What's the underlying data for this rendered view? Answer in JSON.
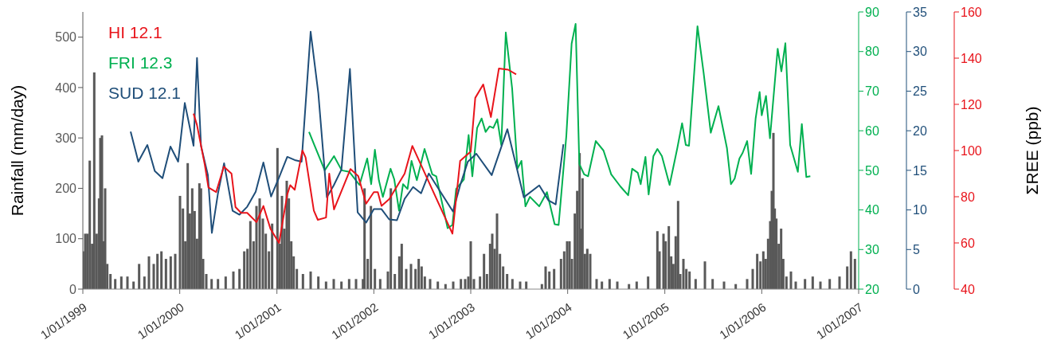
{
  "chart_data": [
    {
      "type": "bar",
      "ylabel": "Rainfall (mm/day)",
      "legend": "top left",
      "marker": "none",
      "line_style": "solid",
      "xlim": [
        "1999-01-01",
        "2007-01-01"
      ],
      "xticks": [
        {
          "value": "1999-01-01",
          "label": "1/01/1999"
        },
        {
          "value": "2000-01-01",
          "label": "1/01/2000"
        },
        {
          "value": "2001-01-01",
          "label": "1/01/2001"
        },
        {
          "value": "2002-01-01",
          "label": "1/01/2002"
        },
        {
          "value": "2003-01-01",
          "label": "1/01/2003"
        },
        {
          "value": "2004-01-01",
          "label": "1/01/2004"
        },
        {
          "value": "2005-01-01",
          "label": "1/01/2005"
        },
        {
          "value": "2006-01-01",
          "label": "1/01/2006"
        },
        {
          "value": "2007-01-01",
          "label": "1/01/2007"
        }
      ],
      "ylim": [
        0,
        550
      ],
      "yticks": [
        0,
        100,
        200,
        300,
        400,
        500
      ],
      "y2lim": [
        20,
        90
      ],
      "y2ticks": [
        20,
        30,
        40,
        50,
        60,
        70,
        80,
        90
      ],
      "y3lim": [
        0,
        35
      ],
      "y3ticks": [
        0,
        5,
        10,
        15,
        20,
        25,
        30,
        35
      ],
      "series": [
        {
          "color": "#595959",
          "x": [
            "1999-01-02",
            "1999-01-10",
            "1999-01-18",
            "1999-01-27",
            "1999-02-05",
            "1999-02-13",
            "1999-02-22",
            "1999-03-03",
            "1999-03-08",
            "1999-03-14",
            "1999-03-20",
            "1999-03-26",
            "1999-04-03",
            "1999-04-15",
            "1999-05-03",
            "1999-05-26",
            "1999-06-18",
            "1999-07-11",
            "1999-08-01",
            "1999-08-21",
            "1999-09-07",
            "1999-09-25",
            "1999-10-09",
            "1999-10-24",
            "1999-11-10",
            "1999-11-28",
            "1999-12-15",
            "2000-01-02",
            "2000-01-13",
            "2000-01-22",
            "2000-01-31",
            "2000-02-08",
            "2000-02-17",
            "2000-02-26",
            "2000-03-06",
            "2000-03-15",
            "2000-03-21",
            "2000-03-29",
            "2000-04-10",
            "2000-04-30",
            "2000-05-24",
            "2000-06-22",
            "2000-07-21",
            "2000-08-13",
            "2000-08-31",
            "2000-09-12",
            "2000-09-23",
            "2000-10-05",
            "2000-10-16",
            "2000-10-28",
            "2000-11-09",
            "2000-11-20",
            "2000-12-02",
            "2000-12-14",
            "2001-01-03",
            "2001-01-12",
            "2001-01-20",
            "2001-01-29",
            "2001-02-07",
            "2001-02-15",
            "2001-02-24",
            "2001-03-05",
            "2001-03-17",
            "2001-04-09",
            "2001-05-08",
            "2001-06-06",
            "2001-07-05",
            "2001-08-03",
            "2001-09-01",
            "2001-09-30",
            "2001-10-26",
            "2001-11-21",
            "2001-11-27",
            "2001-12-09",
            "2001-12-21",
            "2002-01-05",
            "2002-01-25",
            "2002-02-23",
            "2002-03-06",
            "2002-03-21",
            "2002-04-07",
            "2002-04-16",
            "2002-05-03",
            "2002-05-21",
            "2002-06-07",
            "2002-06-19",
            "2002-06-30",
            "2002-07-12",
            "2002-08-01",
            "2002-08-30",
            "2002-09-28",
            "2002-10-27",
            "2002-11-25",
            "2002-12-11",
            "2002-12-23",
            "2003-01-01",
            "2003-01-13",
            "2003-02-05",
            "2003-02-20",
            "2003-03-03",
            "2003-03-15",
            "2003-03-23",
            "2003-04-01",
            "2003-04-10",
            "2003-04-21",
            "2003-05-03",
            "2003-05-18",
            "2003-06-07",
            "2003-07-06",
            "2003-07-29",
            "2003-09-26",
            "2003-10-10",
            "2003-10-24",
            "2003-11-11",
            "2003-12-07",
            "2003-12-19",
            "2003-12-30",
            "2004-01-08",
            "2004-01-17",
            "2004-01-28",
            "2004-02-06",
            "2004-02-15",
            "2004-02-20",
            "2004-02-26",
            "2004-03-06",
            "2004-03-15",
            "2004-03-26",
            "2004-04-19",
            "2004-05-09",
            "2004-06-07",
            "2004-07-06",
            "2004-08-19",
            "2004-09-17",
            "2004-10-30",
            "2004-12-04",
            "2004-12-12",
            "2004-12-27",
            "2005-01-04",
            "2005-01-16",
            "2005-01-25",
            "2005-02-02",
            "2005-02-11",
            "2005-02-20",
            "2005-02-28",
            "2005-03-12",
            "2005-03-23",
            "2005-04-04",
            "2005-04-27",
            "2005-06-01",
            "2005-06-30",
            "2005-08-12",
            "2005-09-25",
            "2005-11-07",
            "2005-11-28",
            "2005-12-15",
            "2005-12-27",
            "2006-01-07",
            "2006-01-16",
            "2006-01-25",
            "2006-02-02",
            "2006-02-08",
            "2006-02-14",
            "2006-02-19",
            "2006-02-25",
            "2006-03-06",
            "2006-03-15",
            "2006-03-23",
            "2006-04-04",
            "2006-04-21",
            "2006-05-09",
            "2006-06-13",
            "2006-07-12",
            "2006-08-10",
            "2006-09-14",
            "2006-10-21",
            "2006-11-19",
            "2006-12-03",
            "2006-12-18"
          ],
          "values": [
            75,
            110,
            110,
            255,
            90,
            430,
            110,
            180,
            300,
            305,
            95,
            200,
            50,
            30,
            20,
            25,
            25,
            15,
            50,
            25,
            65,
            50,
            70,
            75,
            60,
            65,
            70,
            185,
            160,
            95,
            250,
            150,
            200,
            155,
            100,
            210,
            200,
            60,
            30,
            20,
            20,
            25,
            35,
            40,
            75,
            80,
            135,
            95,
            165,
            180,
            140,
            110,
            75,
            130,
            280,
            90,
            185,
            120,
            215,
            180,
            95,
            65,
            40,
            30,
            35,
            25,
            15,
            20,
            15,
            20,
            20,
            20,
            200,
            60,
            165,
            40,
            20,
            35,
            200,
            30,
            65,
            90,
            40,
            50,
            40,
            60,
            45,
            25,
            20,
            15,
            10,
            15,
            20,
            20,
            25,
            95,
            20,
            25,
            70,
            30,
            90,
            110,
            80,
            150,
            70,
            45,
            30,
            20,
            15,
            15,
            10,
            45,
            35,
            40,
            60,
            75,
            95,
            95,
            60,
            150,
            195,
            270,
            120,
            220,
            70,
            80,
            70,
            20,
            15,
            20,
            15,
            10,
            15,
            25,
            115,
            75,
            110,
            95,
            125,
            65,
            50,
            105,
            175,
            30,
            60,
            40,
            35,
            20,
            55,
            20,
            15,
            10,
            20,
            40,
            70,
            55,
            75,
            60,
            100,
            135,
            195,
            310,
            160,
            140,
            90,
            120,
            60,
            25,
            35,
            15,
            20,
            25,
            15,
            20,
            25,
            45,
            75,
            60
          ]
        },
        {
          "type": "line",
          "name": "FRI 12.3",
          "color": "#00b050",
          "axis": "y2",
          "x": [
            "2001-05-02",
            "2001-05-22",
            "2001-06-30",
            "2001-08-04",
            "2001-09-02",
            "2001-10-01",
            "2001-11-08",
            "2001-12-07",
            "2001-12-22",
            "2002-01-05",
            "2002-01-20",
            "2002-02-04",
            "2002-03-05",
            "2002-03-19",
            "2002-04-06",
            "2002-04-21",
            "2002-05-08",
            "2002-05-23",
            "2002-06-12",
            "2002-07-11",
            "2002-08-09",
            "2002-08-24",
            "2002-10-06",
            "2002-10-24",
            "2002-11-07",
            "2002-12-06",
            "2002-12-24",
            "2003-01-07",
            "2003-01-25",
            "2003-02-11",
            "2003-02-26",
            "2003-03-13",
            "2003-03-27",
            "2003-04-11",
            "2003-04-26",
            "2003-05-13",
            "2003-06-06",
            "2003-06-26",
            "2003-07-11",
            "2003-07-26",
            "2003-08-12",
            "2003-09-16",
            "2003-10-15",
            "2003-11-13",
            "2003-11-28",
            "2003-12-27",
            "2004-01-16",
            "2004-01-31",
            "2004-02-14",
            "2004-03-03",
            "2004-03-18",
            "2004-04-16",
            "2004-05-15",
            "2004-06-13",
            "2004-07-18",
            "2004-08-16",
            "2004-08-31",
            "2004-09-21",
            "2004-10-02",
            "2004-10-20",
            "2004-11-01",
            "2004-11-19",
            "2004-12-04",
            "2004-12-21",
            "2005-01-19",
            "2005-02-17",
            "2005-03-07",
            "2005-03-21",
            "2005-04-02",
            "2005-05-04",
            "2005-05-27",
            "2005-06-23",
            "2005-07-22",
            "2005-08-23",
            "2005-09-07",
            "2005-09-21",
            "2005-10-09",
            "2005-10-21",
            "2005-11-07",
            "2005-11-22",
            "2005-12-09",
            "2005-12-24",
            "2006-01-01",
            "2006-01-17",
            "2006-02-01",
            "2006-03-02",
            "2006-03-16",
            "2006-03-31",
            "2006-04-18",
            "2006-05-17",
            "2006-06-01",
            "2006-06-18",
            "2006-07-03"
          ],
          "values": [
            59.7,
            56.4,
            50,
            53.6,
            50,
            49.6,
            46.3,
            53,
            46.5,
            55.2,
            47.5,
            43.3,
            50.4,
            47.7,
            39.8,
            46.5,
            45.3,
            52.4,
            47.5,
            55.4,
            49,
            48.5,
            35.4,
            36.2,
            45.3,
            47.7,
            58.9,
            48.5,
            60.7,
            63.1,
            59.7,
            61.1,
            60.7,
            62.9,
            56.4,
            84.8,
            70.6,
            50.4,
            52.4,
            40.9,
            43.3,
            40.9,
            44.5,
            36.4,
            36.2,
            58.7,
            82,
            87,
            51.6,
            49,
            48.5,
            57.4,
            55,
            49,
            45.9,
            43.7,
            50.4,
            49.4,
            46.5,
            53.4,
            43.9,
            53.6,
            55.4,
            53.6,
            46.3,
            55.6,
            61.9,
            56.4,
            56.2,
            86.4,
            74.7,
            59.5,
            66.2,
            55.6,
            46.5,
            47.9,
            53,
            54.4,
            57.4,
            49.1,
            63.1,
            69.8,
            63.9,
            68.8,
            58.1,
            80.7,
            75,
            82.1,
            56.4,
            49.6,
            61.7,
            48.3,
            48.5
          ]
        },
        {
          "type": "line",
          "name": "SUD 12.1",
          "color": "#1f4e79",
          "axis": "y3",
          "x": [
            "1999-06-30",
            "1999-07-29",
            "1999-09-01",
            "1999-09-29",
            "1999-10-28",
            "1999-11-27",
            "1999-12-26",
            "2000-01-20",
            "2000-02-22",
            "2000-03-06",
            "2000-03-21",
            "2000-04-16",
            "2000-05-01",
            "2000-05-24",
            "2000-06-16",
            "2000-07-18",
            "2000-08-13",
            "2000-09-11",
            "2000-10-13",
            "2000-11-11",
            "2000-12-10",
            "2001-01-09",
            "2001-02-09",
            "2001-03-09",
            "2001-04-04",
            "2001-05-08",
            "2001-06-06",
            "2001-07-08",
            "2001-08-03",
            "2001-09-01",
            "2001-10-03",
            "2001-11-01",
            "2001-12-03",
            "2002-01-01",
            "2002-01-30",
            "2002-02-28",
            "2002-03-29",
            "2002-04-27",
            "2002-05-29",
            "2002-06-28",
            "2002-07-27",
            "2002-10-26",
            "2002-11-22",
            "2002-12-21",
            "2003-01-22",
            "2003-03-21",
            "2003-05-19",
            "2003-07-20",
            "2003-09-16",
            "2003-10-21",
            "2003-11-17",
            "2003-12-16"
          ],
          "values": [
            19.9,
            16.1,
            18.2,
            14.9,
            14,
            18,
            16.1,
            23.5,
            18.1,
            29.2,
            18.1,
            14.4,
            7.1,
            12.1,
            15.9,
            9.9,
            9.4,
            10.4,
            12.3,
            16,
            11.7,
            14.1,
            16.7,
            16.3,
            16.1,
            32.5,
            24.7,
            11.6,
            13.1,
            15.1,
            27.8,
            9.7,
            8.4,
            10.1,
            10.1,
            8.8,
            8.7,
            11.4,
            12.9,
            12.1,
            14.6,
            9.8,
            13.1,
            16.1,
            17.1,
            14.4,
            20.2,
            11.6,
            13.1,
            11.2,
            10.7,
            18.3
          ]
        }
      ]
    },
    {
      "type": "line",
      "ylabel": "ΣREE (ppb)",
      "legend": "top left",
      "marker": "none",
      "line_style": "solid",
      "tick_labels": "y",
      "xlim": [
        "1999-01-01",
        "2007-01-01"
      ],
      "ylim": [
        40,
        160
      ],
      "yticks": [
        40,
        60,
        80,
        100,
        120,
        140,
        160
      ],
      "series": [
        {
          "name": "HI 12.1",
          "color": "#e8141b",
          "x": [
            "2000-02-22",
            "2000-03-06",
            "2000-04-04",
            "2000-04-18",
            "2000-05-17",
            "2000-06-15",
            "2000-07-14",
            "2000-07-29",
            "2000-08-19",
            "2000-09-11",
            "2000-10-16",
            "2000-11-11",
            "2000-12-08",
            "2001-01-09",
            "2001-02-09",
            "2001-02-20",
            "2001-03-09",
            "2001-04-07",
            "2001-04-19",
            "2001-05-20",
            "2001-06-04",
            "2001-07-05",
            "2001-07-17",
            "2001-08-04",
            "2001-10-05",
            "2001-11-03",
            "2001-12-03",
            "2002-01-01",
            "2002-01-16",
            "2002-01-30",
            "2002-02-28",
            "2002-04-27",
            "2002-05-26",
            "2002-10-24",
            "2002-11-22",
            "2003-01-01",
            "2003-01-18",
            "2003-02-17",
            "2003-03-18",
            "2003-04-17",
            "2003-05-22",
            "2003-06-21"
          ],
          "values": [
            116,
            111,
            94,
            84,
            82,
            93,
            90,
            75.5,
            73,
            73,
            69,
            76,
            66,
            60,
            81,
            85,
            83,
            100,
            97,
            74,
            70,
            71,
            90,
            74.5,
            92,
            89,
            77,
            82,
            82,
            76,
            79,
            90,
            102,
            64,
            95.5,
            99.6,
            122.8,
            128.6,
            114.5,
            135.5,
            135,
            133
          ]
        }
      ]
    }
  ]
}
